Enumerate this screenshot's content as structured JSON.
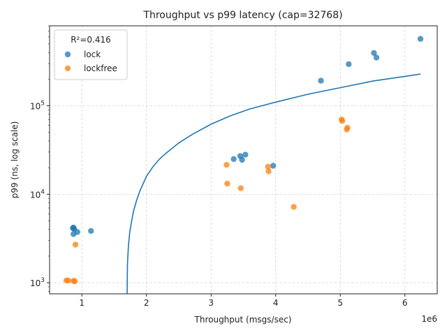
{
  "chart_data": {
    "type": "scatter",
    "title": "Throughput vs p99 latency (cap=32768)",
    "xlabel": "Throughput (msgs/sec)",
    "ylabel": "p99 (ns, log scale)",
    "x_offset_label": "1e6",
    "xlim": [
      500000,
      6500000
    ],
    "ylim": [
      750,
      800000
    ],
    "yscale": "log",
    "grid": true,
    "legend_position": "upper-left",
    "legend_title": "R²=0.416",
    "x_ticks": [
      1000000,
      2000000,
      3000000,
      4000000,
      5000000,
      6000000
    ],
    "x_tick_labels": [
      "1",
      "2",
      "3",
      "4",
      "5",
      "6"
    ],
    "y_ticks": [
      1000,
      10000,
      100000
    ],
    "y_tick_labels": [
      {
        "base": "10",
        "exp": "3"
      },
      {
        "base": "10",
        "exp": "4"
      },
      {
        "base": "10",
        "exp": "5"
      }
    ],
    "series": [
      {
        "name": "lock",
        "color": "#1f77b4",
        "points": [
          [
            860000,
            4150
          ],
          [
            870000,
            4200
          ],
          [
            880000,
            4050
          ],
          [
            870000,
            3550
          ],
          [
            930000,
            3750
          ],
          [
            1140000,
            3850
          ],
          [
            3350000,
            25000
          ],
          [
            3450000,
            27000
          ],
          [
            3480000,
            24500
          ],
          [
            3530000,
            28000
          ],
          [
            3960000,
            21000
          ],
          [
            4700000,
            192000
          ],
          [
            5130000,
            295000
          ],
          [
            5520000,
            395000
          ],
          [
            5560000,
            350000
          ],
          [
            6240000,
            570000
          ]
        ]
      },
      {
        "name": "lockfree",
        "color": "#ff7f0e",
        "points": [
          [
            760000,
            1060
          ],
          [
            790000,
            1060
          ],
          [
            870000,
            1050
          ],
          [
            890000,
            1040
          ],
          [
            900000,
            2700
          ],
          [
            3240000,
            21500
          ],
          [
            3250000,
            13200
          ],
          [
            3460000,
            11700
          ],
          [
            3880000,
            20500
          ],
          [
            3890000,
            18200
          ],
          [
            4280000,
            7200
          ],
          [
            5020000,
            70000
          ],
          [
            5030000,
            67500
          ],
          [
            5100000,
            54000
          ],
          [
            5110000,
            56500
          ]
        ]
      }
    ],
    "fit_line": {
      "color": "#1f77b4",
      "points": [
        [
          1700000,
          750
        ],
        [
          1705000,
          1600
        ],
        [
          1710000,
          1900
        ],
        [
          1720000,
          2600
        ],
        [
          1740000,
          3700
        ],
        [
          1770000,
          5000
        ],
        [
          1800000,
          6500
        ],
        [
          1850000,
          8700
        ],
        [
          1900000,
          11000
        ],
        [
          2000000,
          16000
        ],
        [
          2100000,
          20500
        ],
        [
          2200000,
          25000
        ],
        [
          2300000,
          29000
        ],
        [
          2500000,
          38000
        ],
        [
          2700000,
          47000
        ],
        [
          3000000,
          62000
        ],
        [
          3300000,
          77000
        ],
        [
          3600000,
          92000
        ],
        [
          4000000,
          110000
        ],
        [
          4500000,
          135000
        ],
        [
          5000000,
          160000
        ],
        [
          5500000,
          190000
        ],
        [
          6000000,
          215000
        ],
        [
          6240000,
          228000
        ]
      ]
    }
  }
}
